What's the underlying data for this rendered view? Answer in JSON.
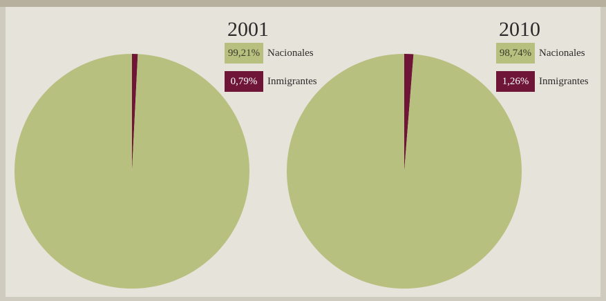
{
  "colors": {
    "nacionales": "#b8c080",
    "inmigrantes": "#6e1538"
  },
  "chart_data": [
    {
      "type": "pie",
      "title": "2001",
      "slices": [
        {
          "label": "Nacionales",
          "value": 99.21,
          "display": "99,21%"
        },
        {
          "label": "Inmigrantes",
          "value": 0.79,
          "display": "0,79%"
        }
      ],
      "legend": "top-right"
    },
    {
      "type": "pie",
      "title": "2010",
      "slices": [
        {
          "label": "Nacionales",
          "value": 98.74,
          "display": "98,74%"
        },
        {
          "label": "Inmigrantes",
          "value": 1.26,
          "display": "1,26%"
        }
      ],
      "legend": "top-right"
    }
  ]
}
